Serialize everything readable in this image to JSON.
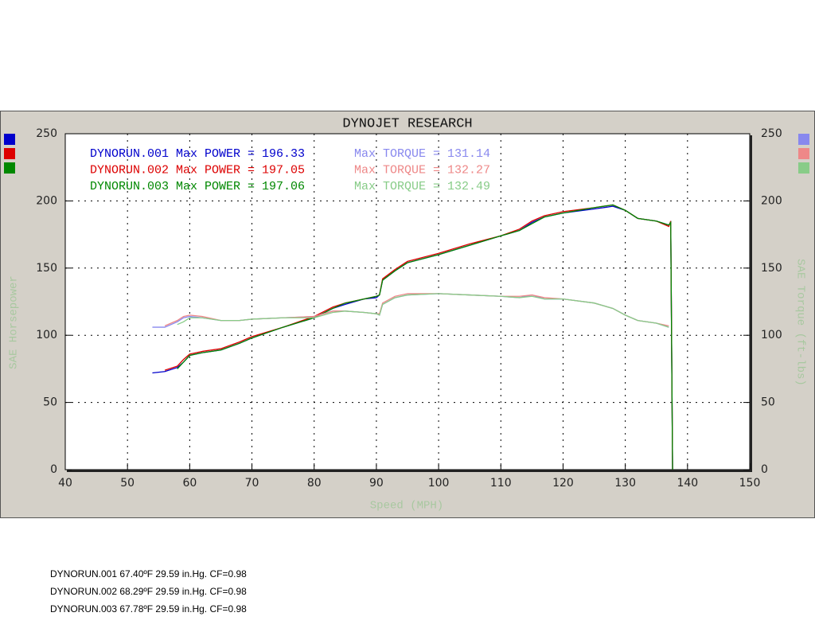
{
  "chart_data": {
    "type": "line",
    "title": "DYNOJET RESEARCH",
    "xlabel": "Speed (MPH)",
    "ylabel": "SAE Horsepower",
    "y2label": "SAE Torque (ft-lbs)",
    "xlim": [
      40,
      150
    ],
    "xticks": [
      40,
      50,
      60,
      70,
      80,
      90,
      100,
      110,
      120,
      130,
      140,
      150
    ],
    "ylim": [
      0,
      250
    ],
    "yticks": [
      0,
      50,
      100,
      150,
      200,
      250
    ],
    "y2lim": [
      0,
      250
    ],
    "y2ticks": [
      0,
      50,
      100,
      150,
      200,
      250
    ],
    "grid": true,
    "x": [
      54,
      56,
      58,
      59,
      60,
      62,
      65,
      68,
      70,
      75,
      80,
      83,
      85,
      88,
      90,
      90.5,
      91,
      93,
      95,
      100,
      105,
      110,
      113,
      115,
      117,
      120,
      125,
      128,
      130,
      132,
      135,
      137,
      137.3,
      137.6
    ],
    "series": [
      {
        "color": "#0000cc",
        "values": [
          72,
          73,
          76,
          80,
          85,
          87,
          89,
          94,
          98,
          106,
          113,
          120,
          123,
          127,
          128,
          130,
          141,
          148,
          154,
          160,
          167,
          174,
          178,
          184,
          188,
          191,
          194,
          196,
          193,
          187,
          185,
          182,
          184,
          0
        ]
      },
      {
        "color": "#dd0000",
        "values": [
          null,
          74,
          77,
          82,
          86,
          88,
          90,
          95,
          99,
          106,
          114,
          121,
          124,
          127,
          129,
          130,
          142,
          149,
          155,
          161,
          168,
          174,
          179,
          185,
          189,
          192,
          195,
          197,
          193,
          187,
          185,
          181,
          185,
          0
        ]
      },
      {
        "color": "#008800",
        "values": [
          null,
          null,
          75,
          80,
          85,
          87,
          89,
          94,
          98,
          106,
          113,
          120,
          124,
          127,
          129,
          130,
          141,
          148,
          154,
          160,
          167,
          174,
          178,
          183,
          188,
          191,
          195,
          197,
          193,
          187,
          185,
          182,
          184,
          0
        ]
      },
      {
        "color": "#8888ee",
        "axis": "y2",
        "values": [
          106,
          106,
          110,
          113,
          114,
          113,
          111,
          111,
          112,
          113,
          114,
          118,
          118,
          117,
          116,
          115,
          123,
          128,
          130,
          131,
          130,
          129,
          128,
          130,
          127,
          127,
          124,
          120,
          115,
          111,
          109,
          106,
          null,
          null
        ]
      },
      {
        "color": "#ee8888",
        "axis": "y2",
        "values": [
          null,
          107,
          111,
          114,
          115,
          114,
          111,
          111,
          112,
          113,
          114,
          118,
          118,
          117,
          116,
          116,
          124,
          129,
          131,
          131,
          130,
          129,
          129,
          130,
          128,
          127,
          124,
          120,
          115,
          111,
          109,
          107,
          null,
          null
        ]
      },
      {
        "color": "#88cc88",
        "axis": "y2",
        "values": [
          null,
          null,
          108,
          110,
          113,
          113,
          111,
          111,
          112,
          113,
          113,
          117,
          118,
          117,
          116,
          115,
          123,
          128,
          130,
          131,
          130,
          129,
          128,
          129,
          127,
          127,
          124,
          120,
          115,
          111,
          109,
          106,
          null,
          null
        ]
      }
    ],
    "annotations": [
      [
        "DYNORUN.001 Max POWER = 196.33",
        "Max TORQUE = 131.14"
      ],
      [
        "DYNORUN.002 Max POWER = 197.05",
        "Max TORQUE = 132.27"
      ],
      [
        "DYNORUN.003 Max POWER = 197.06",
        "Max TORQUE = 132.49"
      ]
    ]
  },
  "footnotes": [
    "DYNORUN.001 67.40ºF 29.59 in.Hg. CF=0.98",
    "DYNORUN.002 68.29ºF 29.59 in.Hg. CF=0.98",
    "DYNORUN.003 67.78ºF 29.59 in.Hg. CF=0.98"
  ]
}
